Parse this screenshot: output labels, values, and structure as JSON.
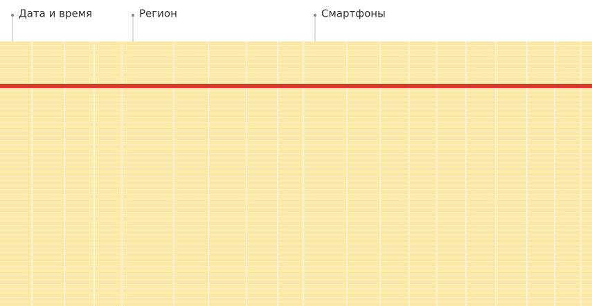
{
  "columns": [
    {
      "label": "Дата и время"
    },
    {
      "label": "Регион"
    },
    {
      "label": "Смартфоны"
    }
  ]
}
